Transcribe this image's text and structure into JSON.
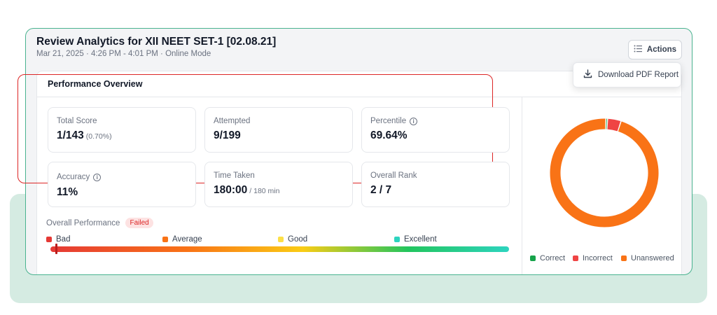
{
  "header": {
    "title": "Review Analytics for XII NEET SET-1 [02.08.21]",
    "subtitle": "Mar 21, 2025 · 4:26 PM - 4:01 PM · Online Mode",
    "actions_label": "Actions"
  },
  "dropdown": {
    "download_label": "Download PDF Report"
  },
  "overview": {
    "title": "Performance Overview",
    "stats": [
      {
        "label": "Total Score",
        "value": "1/143",
        "sub": "(0.70%)"
      },
      {
        "label": "Attempted",
        "value": "9/199",
        "sub": ""
      },
      {
        "label": "Percentile",
        "value": "69.64%",
        "sub": ""
      },
      {
        "label": "Accuracy",
        "value": "11%",
        "sub": ""
      },
      {
        "label": "Time Taken",
        "value": "180:00",
        "sub": "/ 180 min"
      },
      {
        "label": "Overall Rank",
        "value": "2 / 7",
        "sub": ""
      }
    ]
  },
  "performance": {
    "label": "Overall Performance",
    "status": "Failed",
    "level_fraction": 0.01,
    "levels": [
      {
        "name": "Bad",
        "color": "#e53935"
      },
      {
        "name": "Average",
        "color": "#f97316"
      },
      {
        "name": "Good",
        "color": "#fde047"
      },
      {
        "name": "Excellent",
        "color": "#2dd4bf"
      }
    ]
  },
  "answers": {
    "legend": [
      {
        "name": "Correct",
        "color": "#16a34a"
      },
      {
        "name": "Incorrect",
        "color": "#ef4444"
      },
      {
        "name": "Unanswered",
        "color": "#f97316"
      }
    ],
    "counts": {
      "correct": 1,
      "incorrect": 8,
      "unanswered": 190
    }
  }
}
